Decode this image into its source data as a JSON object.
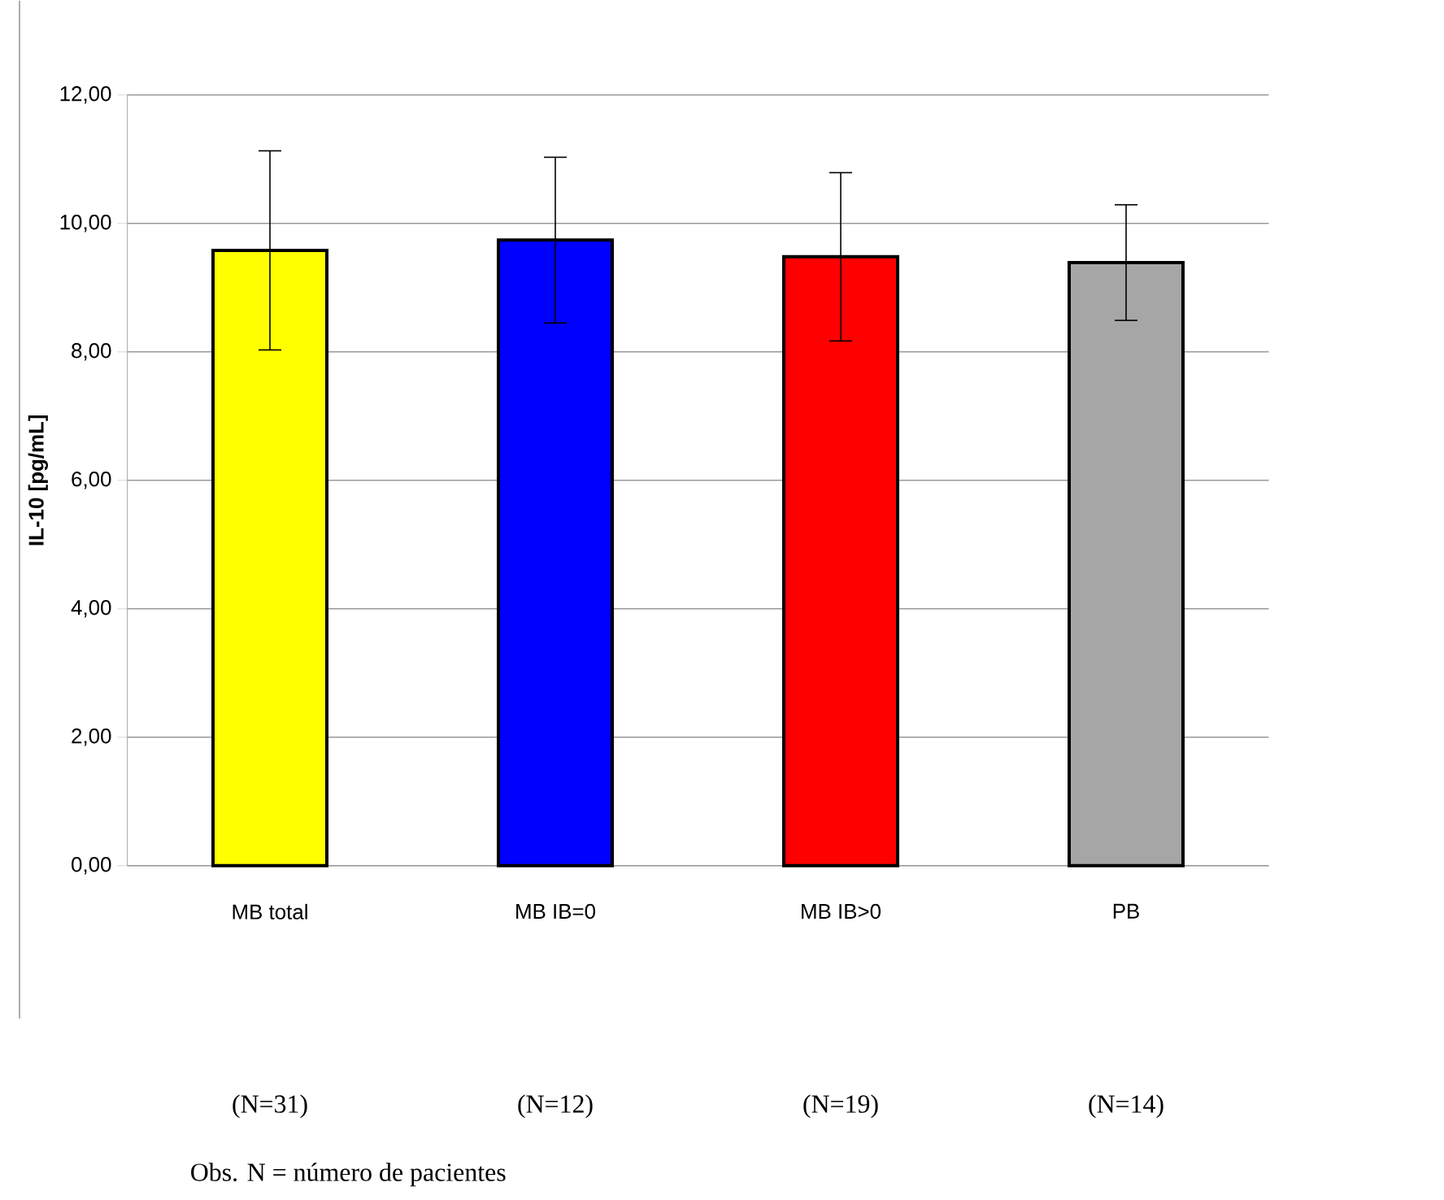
{
  "chart_data": {
    "type": "bar",
    "ylabel": "IL-10 [pg/mL]",
    "categories": [
      "MB total",
      "MB IB=0",
      "MB IB>0",
      "PB"
    ],
    "values": [
      9.58,
      9.74,
      9.48,
      9.39
    ],
    "errors": [
      1.55,
      1.29,
      1.31,
      0.9
    ],
    "colors": [
      "#ffff00",
      "#0000ff",
      "#ff0000",
      "#a6a6a6"
    ],
    "ylim": [
      0,
      12
    ],
    "yticks": [
      {
        "value": 0,
        "label": "0,00"
      },
      {
        "value": 2,
        "label": "2,00"
      },
      {
        "value": 4,
        "label": "4,00"
      },
      {
        "value": 6,
        "label": "6,00"
      },
      {
        "value": 8,
        "label": "8,00"
      },
      {
        "value": 10,
        "label": "10,00"
      },
      {
        "value": 12,
        "label": "12,00"
      }
    ],
    "grid": "y",
    "annotations": [
      "(N=31)",
      "(N=12)",
      "(N=19)",
      "(N=14)",
      "Obs. N = número de pacientes"
    ]
  }
}
